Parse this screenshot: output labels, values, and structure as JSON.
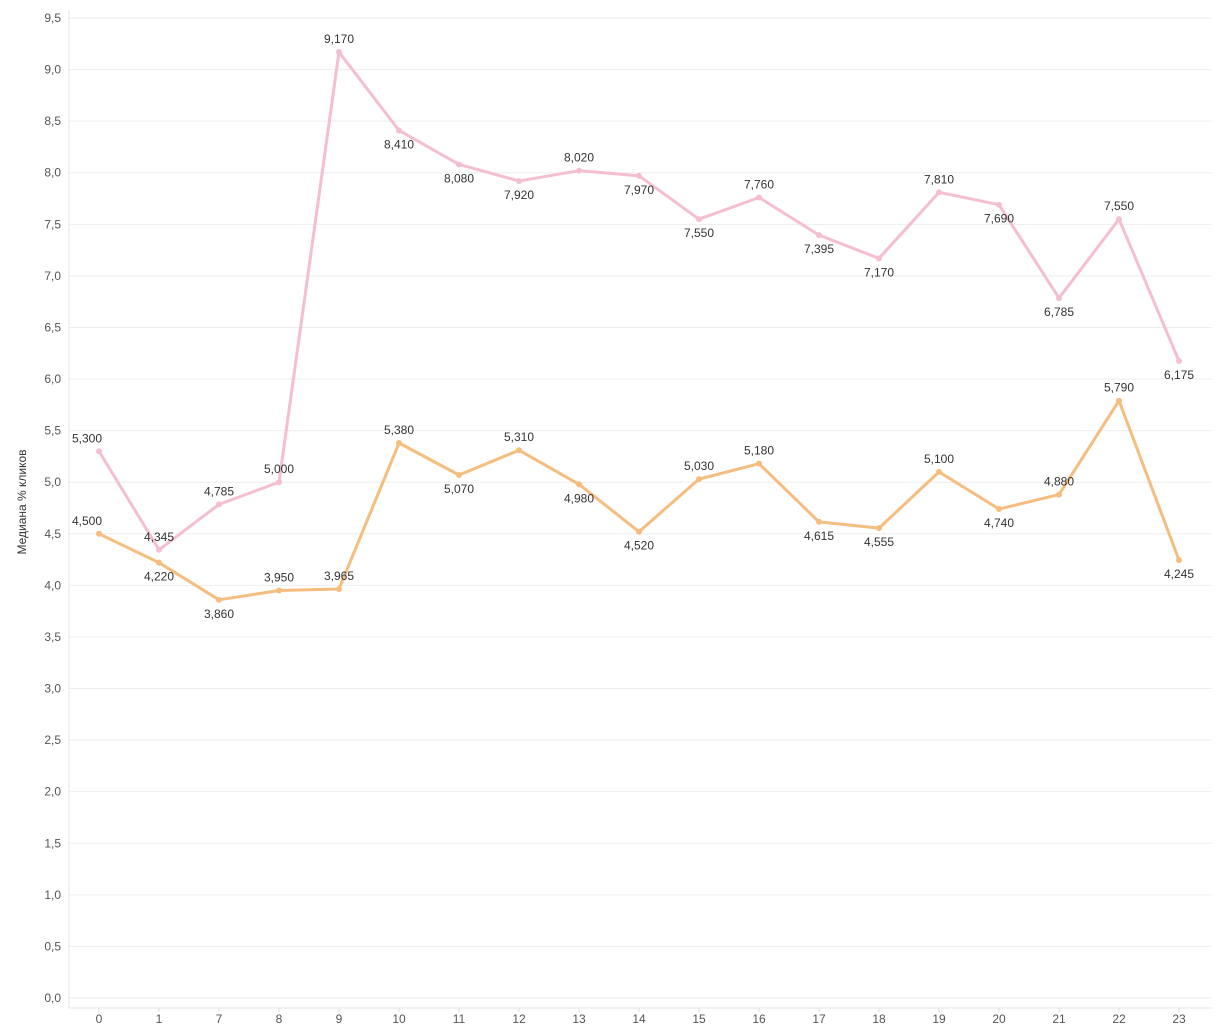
{
  "chart_data": {
    "type": "line",
    "title": "",
    "xlabel": "",
    "ylabel": "Медиана % кликов",
    "categories": [
      "0",
      "1",
      "7",
      "8",
      "9",
      "10",
      "11",
      "12",
      "13",
      "14",
      "15",
      "16",
      "17",
      "18",
      "19",
      "20",
      "21",
      "22",
      "23"
    ],
    "ylim": [
      0,
      9.5
    ],
    "yticks": [
      "0,0",
      "0,5",
      "1,0",
      "1,5",
      "2,0",
      "2,5",
      "3,0",
      "3,5",
      "4,0",
      "4,5",
      "5,0",
      "5,5",
      "6,0",
      "6,5",
      "7,0",
      "7,5",
      "8,0",
      "8,5",
      "9,0",
      "9,5"
    ],
    "grid": true,
    "legend": "none",
    "series": [
      {
        "color": "#f4bfcf",
        "values": [
          5.3,
          4.345,
          4.785,
          5.0,
          9.17,
          8.41,
          8.08,
          7.92,
          8.02,
          7.97,
          7.55,
          7.76,
          7.395,
          7.17,
          7.81,
          7.69,
          6.785,
          7.55,
          6.175
        ],
        "labels": [
          "5,300",
          "4,345",
          "4,785",
          "5,000",
          "9,170",
          "8,410",
          "8,080",
          "7,920",
          "8,020",
          "7,970",
          "7,550",
          "7,760",
          "7,395",
          "7,170",
          "7,810",
          "7,690",
          "6,785",
          "7,550",
          "6,175"
        ]
      },
      {
        "color": "#f5bd7f",
        "values": [
          4.5,
          4.22,
          3.86,
          3.95,
          3.965,
          5.38,
          5.07,
          5.31,
          4.98,
          4.52,
          5.03,
          5.18,
          4.615,
          4.555,
          5.1,
          4.74,
          4.88,
          5.79,
          4.245
        ],
        "labels": [
          "4,500",
          "4,220",
          "3,860",
          "3,950",
          "3,965",
          "5,380",
          "5,070",
          "5,310",
          "4,980",
          "4,520",
          "5,030",
          "5,180",
          "4,615",
          "4,555",
          "5,100",
          "4,740",
          "4,880",
          "5,790",
          "4,245"
        ]
      }
    ]
  }
}
